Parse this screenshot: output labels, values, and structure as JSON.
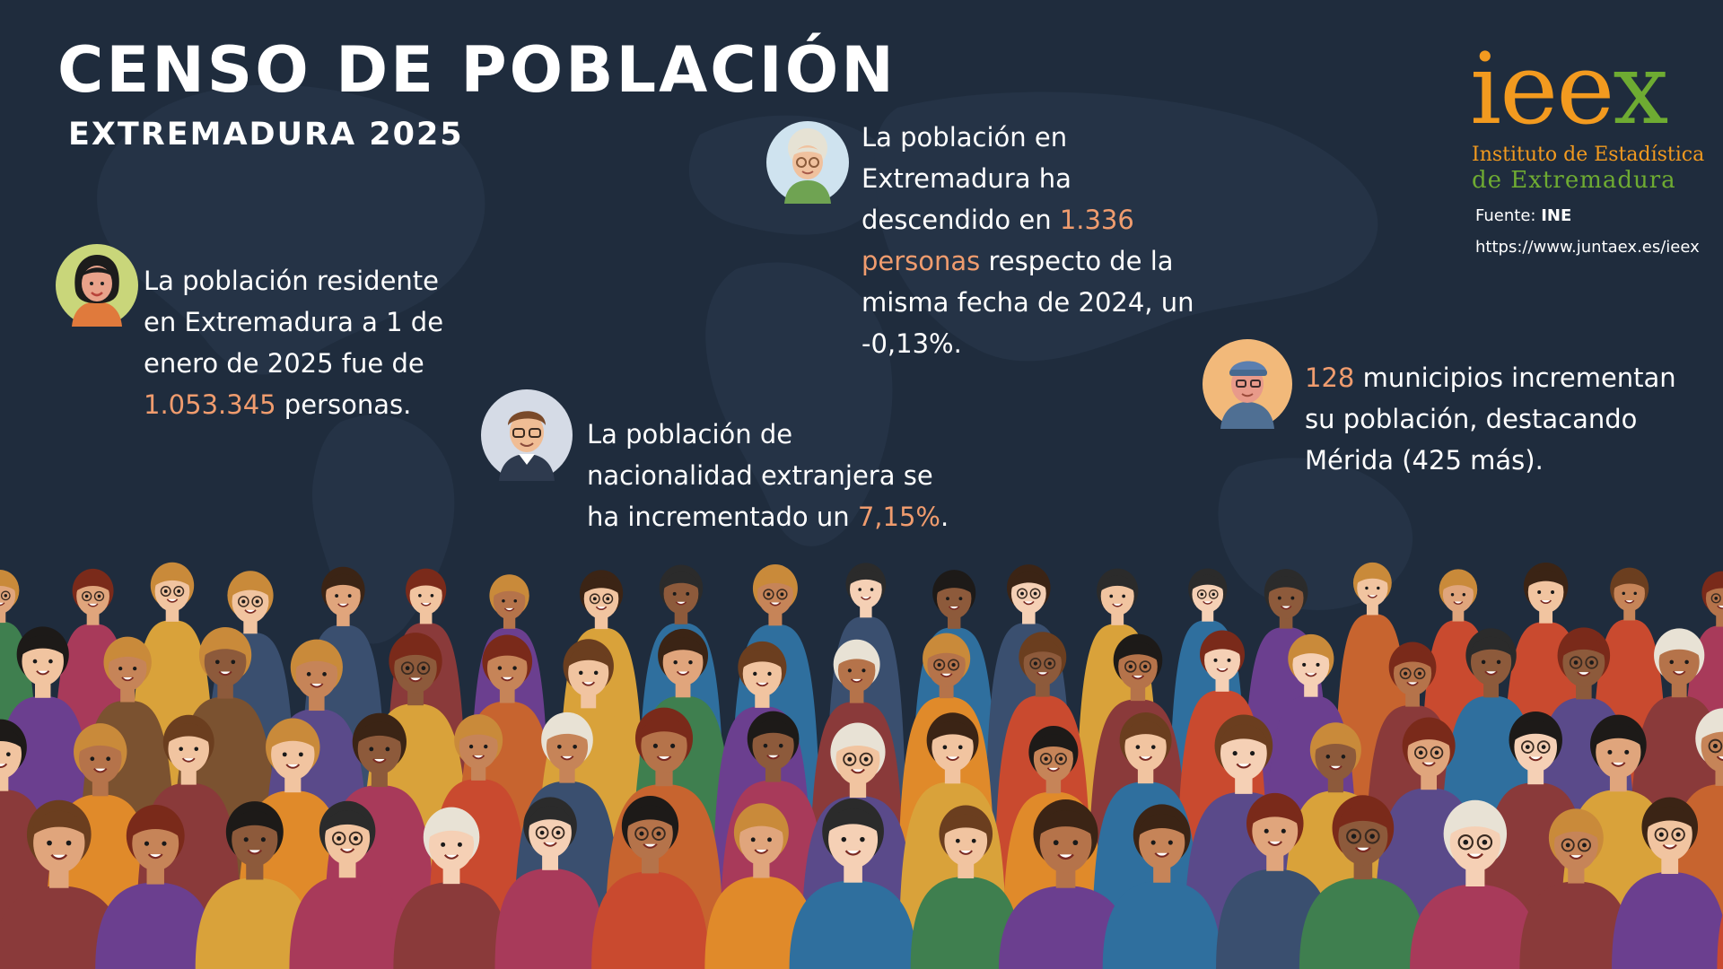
{
  "header": {
    "title": "CENSO DE POBLACIÓN",
    "subtitle": "EXTREMADURA 2025"
  },
  "logo": {
    "word_ie": "iee",
    "word_x": "x",
    "line1": "Instituto de Estadística",
    "line2": "de Extremadura"
  },
  "source": {
    "label": "Fuente: ",
    "value": "INE",
    "url": "https://www.juntaex.es/ieex"
  },
  "facts": {
    "residents": {
      "text1": "La población residente en Extremadura a 1 de enero de 2025 fue de ",
      "highlight": "1.053.345",
      "text2": " personas."
    },
    "decline": {
      "text1": "La población en Extremadura ha descendido en ",
      "highlight": "1.336 personas",
      "text2": " respecto de la misma fecha de 2024, un -0,13%."
    },
    "foreign": {
      "text1": "La población de nacionalidad extranjera se ha incrementado un ",
      "highlight": "7,15%",
      "text2": "."
    },
    "municipalities": {
      "highlight": "128",
      "text2": " municipios incrementan su población, destacando Mérida (425 más)."
    }
  },
  "colors": {
    "background": "#1f2c3d",
    "highlight": "#f09c6e",
    "logo_orange": "#f29a1f",
    "logo_green": "#6eab32"
  },
  "icons": {
    "avatar_1": "woman-avatar-icon",
    "avatar_2": "elderly-woman-avatar-icon",
    "avatar_3": "man-glasses-avatar-icon",
    "avatar_4": "man-cap-avatar-icon",
    "crowd": "crowd-illustration"
  }
}
